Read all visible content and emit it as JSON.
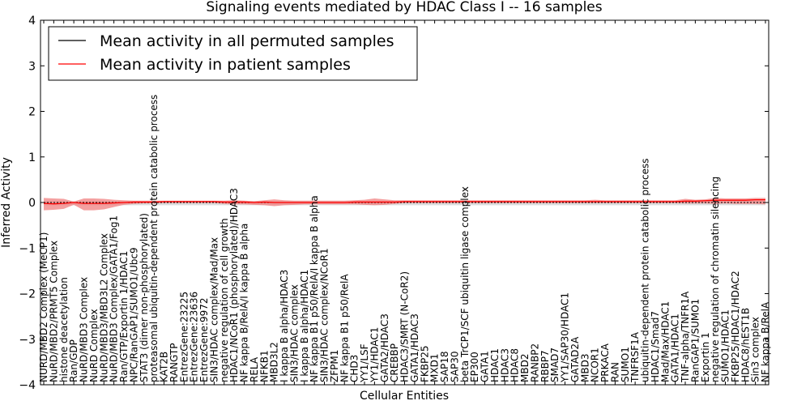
{
  "chart_data": {
    "type": "line",
    "title": "Signaling events mediated by HDAC Class I -- 16 samples",
    "xlabel": "Cellular Entities",
    "ylabel": "Inferred Activity",
    "ylim": [
      -4,
      4
    ],
    "yticks": [
      "-4",
      "-3",
      "-2",
      "-1",
      "0",
      "1",
      "2",
      "3",
      "4"
    ],
    "legend": {
      "placement": "top-left",
      "entries": [
        {
          "label": "Mean activity in all permuted samples",
          "color": "#000000"
        },
        {
          "label": "Mean activity in patient samples",
          "color": "#ff0000"
        }
      ]
    },
    "colors": {
      "permuted": "#000000",
      "patient": "#ff0000",
      "patient_band": "#f08080",
      "permuted_band": "#c0c0c0"
    },
    "categories": [
      "NURD/MBD2 Complex (MeCP1)",
      "NuRD/MBD2/PRMT5 Complex",
      "histone deacetylation",
      "Ran/GDP",
      "NuRD/MBD3 Complex",
      "NuRD Complex",
      "NuRD/MBD3/MBD3L2 Complex",
      "NuRD/MBD3 Complex/GATA1/Fog1",
      "Ran/GTP/Exportin 1/HDAC1",
      "NPC/RanGAP1/SUMO1/Ubc9",
      "STAT3 (dimer non-phosphorylated)",
      "proteasomal ubiquitin-dependent protein catabolic process",
      "KAT2B",
      "RANGTP",
      "EntrezGene:23225",
      "EntrezGene:23636",
      "EntrezGene:9972",
      "SIN3/HDAC complex/Mad/Max",
      "negative regulation of cell growth",
      "HDAC1/NCoR1 (phosphorylated)/HDAC3",
      "NF kappa B/RelA/I kappa B alpha",
      "RELA",
      "NFKB1",
      "MBD3L2",
      "I kappa B alpha/HDAC3",
      "SIN3/HDAC complex",
      "I kappa B alpha/HDAC1",
      "NF kappa B1 p50/RelA/I kappa B alpha",
      "SIN3/HDAC complex/NCoR1",
      "ZFPM1",
      "NF kappa B1 p50/RelA",
      "CHD3",
      "YY1/LSF",
      "YY1/HDAC1",
      "GATA2/HDAC3",
      "CREBBP",
      "HDAC3/SMRT (N-CoR2)",
      "GATA1/HDAC3",
      "FKBP25",
      "MXD1",
      "SAP18",
      "SAP30",
      "beta TrCP1/SCF ubiquitin ligase complex",
      "EP300",
      "GATA1",
      "HDAC1",
      "HDAC3",
      "HDAC8",
      "MBD2",
      "RANBP2",
      "RBBP7",
      "SMAD7",
      "YY1/SAP30/HDAC1",
      "GATAD2A",
      "MBD3",
      "NCOR1",
      "PRKACA",
      "RAN",
      "SUMO1",
      "TNFRSF1A",
      "ubiquitin-dependent protein catabolic process",
      "HDAC1/Smad7",
      "Mad/Max/HDAC1",
      "GATA1/HDAC1",
      "TNF-alpha/TNFR1A",
      "RanGAP1/SUMO1",
      "Exportin 1",
      "negative regulation of chromatin silencing",
      "SUMO1/HDAC1",
      "FKBP25/HDAC1/HDAC2",
      "HDAC8/hEST1B",
      "Sin3 complex",
      "NF kappa B/RelA"
    ],
    "series": [
      {
        "name": "Mean activity in all permuted samples",
        "values": [
          0,
          0,
          0,
          0,
          0,
          0,
          0,
          0,
          0,
          0,
          0,
          0,
          0,
          0,
          0,
          0,
          0,
          0,
          0,
          0,
          0,
          0,
          0,
          0,
          0,
          0,
          0,
          0,
          0,
          0,
          0,
          0,
          0,
          0,
          0,
          0,
          0,
          0,
          0,
          0,
          0,
          0,
          0,
          0,
          0,
          0,
          0,
          0,
          0,
          0,
          0,
          0,
          0,
          0,
          0,
          0,
          0,
          0,
          0,
          0,
          0,
          0,
          0,
          0,
          0,
          0,
          0,
          0,
          0,
          0,
          0,
          0,
          0
        ]
      },
      {
        "name": "Mean activity in patient samples",
        "values": [
          -0.02,
          -0.03,
          -0.02,
          0,
          -0.02,
          -0.02,
          -0.02,
          -0.01,
          0,
          0.01,
          0.01,
          0.01,
          0.02,
          0.02,
          0.02,
          0.02,
          0.02,
          0.02,
          0.01,
          0.01,
          0.01,
          0,
          0.01,
          0,
          0,
          0,
          0,
          0,
          0,
          0,
          0,
          0.01,
          0.01,
          0.01,
          0.01,
          0.01,
          0.02,
          0.02,
          0.02,
          0.02,
          0.02,
          0.02,
          0.02,
          0.02,
          0.02,
          0.02,
          0.02,
          0.02,
          0.02,
          0.02,
          0.02,
          0.02,
          0.02,
          0.02,
          0.02,
          0.02,
          0.02,
          0.02,
          0.02,
          0.02,
          0.02,
          0.02,
          0.02,
          0.02,
          0.03,
          0.03,
          0.04,
          0.05,
          0.05,
          0.05,
          0.05,
          0.06,
          0.06
        ]
      }
    ],
    "patient_band": {
      "upper": [
        0.1,
        0.09,
        0.08,
        0.02,
        0.09,
        0.09,
        0.08,
        0.06,
        0.05,
        0.04,
        0.04,
        0.04,
        0.04,
        0.04,
        0.04,
        0.04,
        0.04,
        0.04,
        0.04,
        0.05,
        0.04,
        0.03,
        0.05,
        0.07,
        0.05,
        0.04,
        0.04,
        0.04,
        0.04,
        0.04,
        0.04,
        0.05,
        0.06,
        0.09,
        0.07,
        0.05,
        0.05,
        0.05,
        0.05,
        0.05,
        0.05,
        0.05,
        0.05,
        0.05,
        0.05,
        0.05,
        0.05,
        0.05,
        0.05,
        0.05,
        0.05,
        0.05,
        0.05,
        0.05,
        0.05,
        0.06,
        0.05,
        0.05,
        0.05,
        0.05,
        0.05,
        0.05,
        0.05,
        0.05,
        0.08,
        0.06,
        0.07,
        0.1,
        0.09,
        0.09,
        0.09,
        0.1,
        0.1
      ],
      "lower": [
        -0.17,
        -0.16,
        -0.14,
        -0.05,
        -0.17,
        -0.17,
        -0.15,
        -0.1,
        -0.05,
        -0.03,
        -0.02,
        -0.02,
        -0.01,
        -0.01,
        -0.01,
        -0.01,
        -0.01,
        -0.01,
        -0.03,
        -0.04,
        -0.04,
        -0.05,
        -0.06,
        -0.08,
        -0.06,
        -0.05,
        -0.04,
        -0.04,
        -0.04,
        -0.04,
        -0.04,
        -0.04,
        -0.05,
        -0.06,
        -0.05,
        -0.03,
        -0.01,
        -0.01,
        -0.01,
        -0.01,
        -0.01,
        -0.01,
        -0.01,
        -0.01,
        -0.01,
        -0.01,
        -0.01,
        -0.01,
        -0.01,
        -0.01,
        -0.01,
        -0.01,
        -0.01,
        -0.01,
        -0.01,
        -0.01,
        -0.01,
        -0.01,
        -0.01,
        -0.01,
        -0.01,
        -0.01,
        -0.01,
        -0.01,
        -0.02,
        -0.02,
        -0.02,
        -0.03,
        -0.02,
        -0.03,
        -0.03,
        -0.03,
        -0.04
      ]
    },
    "permuted_band": {
      "upper": 0.03,
      "lower": -0.06
    }
  }
}
